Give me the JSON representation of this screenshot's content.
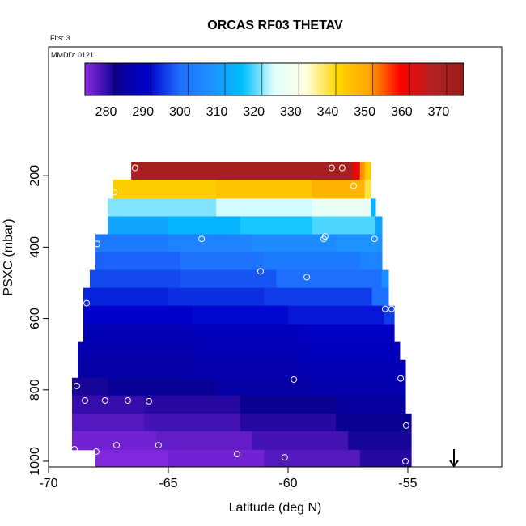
{
  "chart_data": {
    "type": "heatmap",
    "title": "ORCAS RF03 THETAV",
    "subtitle": "Flts: 3",
    "annotation": "MMDD: 0121",
    "xlabel": "Latitude (deg N)",
    "ylabel": "PSXC (mbar)",
    "xlim": [
      -70,
      -51.08
    ],
    "xticks": [
      -70,
      -65,
      -60,
      -55
    ],
    "ylim": [
      1016,
      -161
    ],
    "yticks": [
      200,
      400,
      600,
      800,
      1000
    ],
    "clim": [
      274.3,
      376.8
    ],
    "cticks": [
      280,
      290,
      300,
      310,
      320,
      330,
      340,
      350,
      360,
      370
    ],
    "colormap": [
      "#8a2be2",
      "#0a0090",
      "#0000cd",
      "#1e6fff",
      "#1e90ff",
      "#00bfff",
      "#e0ffff",
      "#ffffe0",
      "#ffd700",
      "#ffa500",
      "#ff0000",
      "#b22222",
      "#9a1c1c"
    ],
    "rows": [
      {
        "p": [
          161,
          211
        ],
        "lat_edges": [
          -66.55,
          -57.3,
          -57.0,
          -56.8,
          -56.55
        ],
        "values": [
          372,
          362,
          352,
          345
        ]
      },
      {
        "p": [
          211,
          264
        ],
        "lat_edges": [
          -67.3,
          -63.0,
          -59.0,
          -56.8,
          -56.55
        ],
        "values": [
          344,
          346,
          349,
          340
        ]
      },
      {
        "p": [
          264,
          314
        ],
        "lat_edges": [
          -67.53,
          -63.0,
          -59.0,
          -56.55,
          -56.35
        ],
        "values": [
          322,
          325,
          328,
          315
        ]
      },
      {
        "p": [
          314,
          364
        ],
        "lat_edges": [
          -67.53,
          -65.0,
          -62.0,
          -59.0,
          -56.35,
          -56.08
        ],
        "values": [
          312,
          315,
          318,
          320,
          312
        ]
      },
      {
        "p": [
          364,
          414
        ],
        "lat_edges": [
          -68.04,
          -65.0,
          -61.5,
          -58.0,
          -56.08
        ],
        "values": [
          303,
          305,
          307,
          309
        ]
      },
      {
        "p": [
          414,
          464
        ],
        "lat_edges": [
          -68.04,
          -64.5,
          -61.0,
          -57.0,
          -56.08
        ],
        "values": [
          299,
          301,
          303,
          305
        ]
      },
      {
        "p": [
          464,
          514
        ],
        "lat_edges": [
          -68.28,
          -64.5,
          -60.5,
          -56.1,
          -55.81
        ],
        "values": [
          297,
          298,
          300,
          308
        ]
      },
      {
        "p": [
          514,
          564
        ],
        "lat_edges": [
          -68.55,
          -65.0,
          -61.0,
          -56.5,
          -55.81
        ],
        "values": [
          294,
          295,
          296,
          300
        ]
      },
      {
        "p": [
          564,
          616
        ],
        "lat_edges": [
          -68.55,
          -64.0,
          -60.0,
          -56.0,
          -55.57
        ],
        "values": [
          291,
          292,
          293,
          296
        ]
      },
      {
        "p": [
          616,
          666
        ],
        "lat_edges": [
          -68.55,
          -64.0,
          -59.5,
          -55.57
        ],
        "values": [
          288,
          289,
          290
        ]
      },
      {
        "p": [
          666,
          716
        ],
        "lat_edges": [
          -68.78,
          -64.0,
          -59.5,
          -55.34
        ],
        "values": [
          287,
          288,
          289
        ]
      },
      {
        "p": [
          716,
          766
        ],
        "lat_edges": [
          -68.78,
          -64.0,
          -59.5,
          -55.1
        ],
        "values": [
          286,
          287,
          288
        ]
      },
      {
        "p": [
          766,
          816
        ],
        "lat_edges": [
          -69.02,
          -67.5,
          -63.0,
          -59.0,
          -55.1
        ],
        "values": [
          282,
          284,
          286,
          287
        ]
      },
      {
        "p": [
          816,
          866
        ],
        "lat_edges": [
          -69.02,
          -66.0,
          -62.0,
          -58.0,
          -55.1
        ],
        "values": [
          280,
          281,
          283,
          285
        ]
      },
      {
        "p": [
          866,
          916
        ],
        "lat_edges": [
          -69.02,
          -66.0,
          -62.0,
          -58.0,
          -54.86
        ],
        "values": [
          278,
          279,
          281,
          283
        ]
      },
      {
        "p": [
          916,
          968
        ],
        "lat_edges": [
          -69.02,
          -65.5,
          -61.5,
          -57.5,
          -54.86
        ],
        "values": [
          276,
          277,
          279,
          282
        ]
      },
      {
        "p": [
          968,
          1016
        ],
        "lat_edges": [
          -68.04,
          -65.0,
          -61.0,
          -57.0,
          -54.86
        ],
        "values": [
          275,
          276,
          278,
          281
        ]
      }
    ],
    "flight_points": {
      "lat": [
        -66.39,
        -58.18,
        -57.74,
        -57.26,
        -67.26,
        -67.97,
        -63.61,
        -58.51,
        -58.45,
        -56.39,
        -61.15,
        -59.22,
        -68.41,
        -55.95,
        -55.68,
        -68.82,
        -59.76,
        -55.3,
        -68.48,
        -67.64,
        -66.69,
        -65.81,
        -55.07,
        -68.92,
        -68.01,
        -67.16,
        -65.41,
        -62.13,
        -60.14,
        -55.1
      ],
      "pressure": [
        178,
        178,
        178,
        228,
        246,
        391,
        377,
        377,
        370,
        377,
        468,
        484,
        557,
        573,
        573,
        789,
        771,
        768,
        830,
        830,
        830,
        832,
        900,
        966,
        973,
        955,
        955,
        980,
        989,
        1000
      ],
      "color": "#ffffff"
    }
  }
}
